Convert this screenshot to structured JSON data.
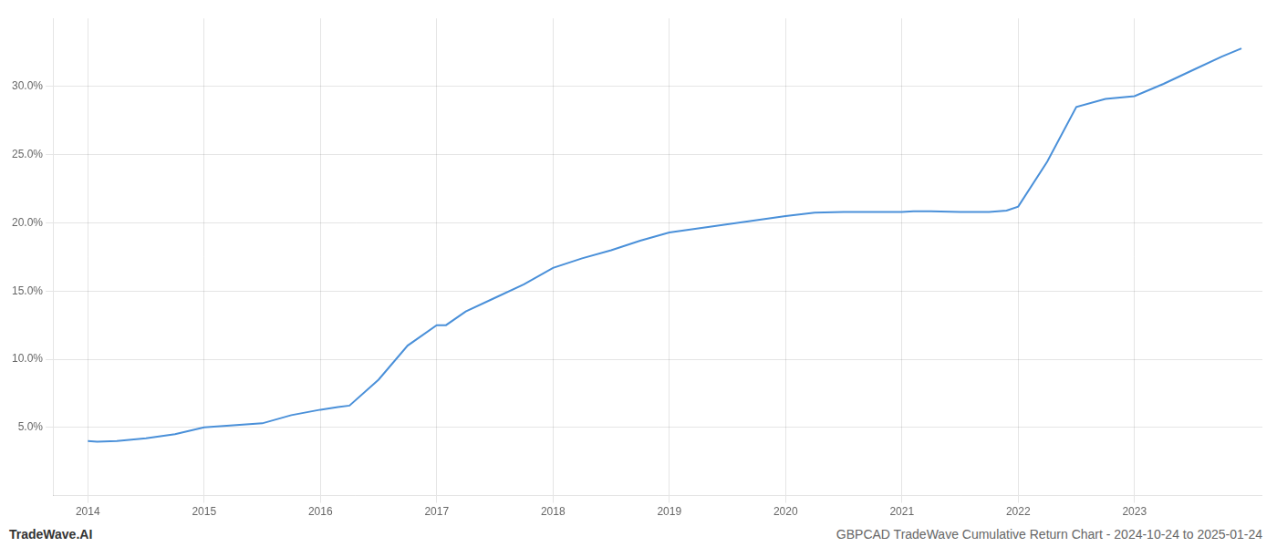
{
  "chart_data": {
    "type": "line",
    "title": "GBPCAD TradeWave Cumulative Return Chart - 2024-10-24 to 2025-01-24",
    "annotations": [
      "TradeWave.AI"
    ],
    "color": "#4a90d9",
    "x": [
      2014.0,
      2014.08,
      2014.25,
      2014.5,
      2014.75,
      2015.0,
      2015.25,
      2015.5,
      2015.75,
      2016.0,
      2016.15,
      2016.25,
      2016.5,
      2016.75,
      2017.0,
      2017.08,
      2017.25,
      2017.5,
      2017.75,
      2018.0,
      2018.25,
      2018.5,
      2018.75,
      2019.0,
      2019.25,
      2019.5,
      2019.75,
      2020.0,
      2020.25,
      2020.5,
      2020.75,
      2021.0,
      2021.1,
      2021.25,
      2021.5,
      2021.75,
      2021.9,
      2022.0,
      2022.25,
      2022.5,
      2022.75,
      2023.0,
      2023.25,
      2023.5,
      2023.75,
      2023.92
    ],
    "values": [
      4.0,
      3.95,
      4.0,
      4.2,
      4.5,
      5.0,
      5.15,
      5.3,
      5.9,
      6.3,
      6.5,
      6.6,
      8.5,
      11.0,
      12.5,
      12.5,
      13.5,
      14.5,
      15.5,
      16.7,
      17.4,
      18.0,
      18.7,
      19.3,
      19.6,
      19.9,
      20.2,
      20.5,
      20.75,
      20.8,
      20.8,
      20.8,
      20.85,
      20.85,
      20.8,
      20.8,
      20.9,
      21.2,
      24.5,
      28.5,
      29.1,
      29.3,
      30.2,
      31.2,
      32.2,
      32.8
    ],
    "xlim": [
      2013.7,
      2024.1
    ],
    "xticks": [
      2014,
      2015,
      2016,
      2017,
      2018,
      2019,
      2020,
      2021,
      2022,
      2023
    ],
    "ylim": [
      0,
      35
    ],
    "yticks": [
      {
        "value": 5.0,
        "label": "5.0%"
      },
      {
        "value": 10.0,
        "label": "10.0%"
      },
      {
        "value": 15.0,
        "label": "15.0%"
      },
      {
        "value": 20.0,
        "label": "20.0%"
      },
      {
        "value": 25.0,
        "label": "25.0%"
      },
      {
        "value": 30.0,
        "label": "30.0%"
      }
    ],
    "grid": true
  }
}
